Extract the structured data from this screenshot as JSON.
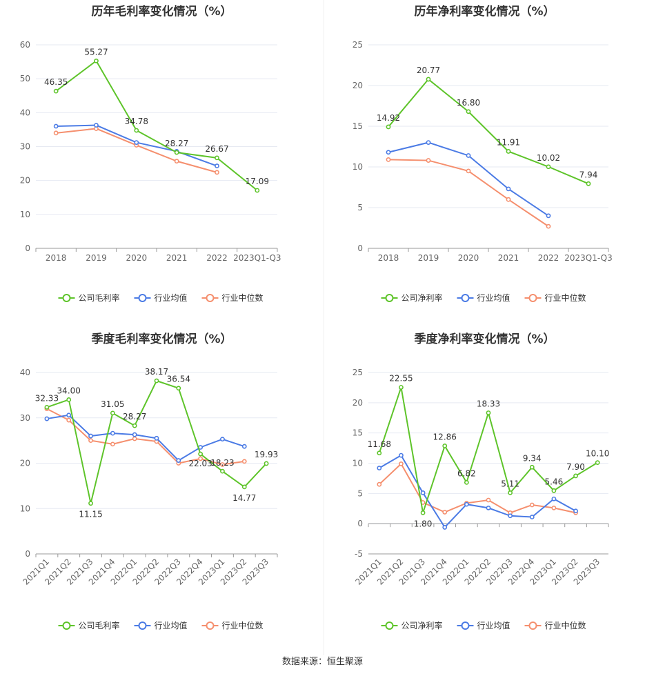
{
  "colors": {
    "company": "#5ec42a",
    "industry_avg": "#4b7be5",
    "industry_median": "#f58f6e"
  },
  "legend": {
    "gross": [
      "公司毛利率",
      "行业均值",
      "行业中位数"
    ],
    "net": [
      "公司净利率",
      "行业均值",
      "行业中位数"
    ]
  },
  "footer": {
    "source": "数据来源：恒生聚源"
  },
  "chart_data": [
    {
      "type": "line",
      "title": "历年毛利率变化情况（%）",
      "categories": [
        "2018",
        "2019",
        "2020",
        "2021",
        "2022",
        "2023Q1-Q3"
      ],
      "ylim": [
        0,
        60
      ],
      "yticks": [
        0,
        10,
        20,
        30,
        40,
        50,
        60
      ],
      "legend_position": "bottom",
      "series": [
        {
          "name": "公司毛利率",
          "values": [
            46.35,
            55.27,
            34.78,
            28.27,
            26.67,
            17.09
          ],
          "labels": true
        },
        {
          "name": "行业均值",
          "values": [
            36.0,
            36.3,
            31.2,
            28.6,
            24.3,
            null
          ],
          "labels": false
        },
        {
          "name": "行业中位数",
          "values": [
            34.0,
            35.3,
            30.4,
            25.7,
            22.4,
            null
          ],
          "labels": false
        }
      ]
    },
    {
      "type": "line",
      "title": "历年净利率变化情况（%）",
      "categories": [
        "2018",
        "2019",
        "2020",
        "2021",
        "2022",
        "2023Q1-Q3"
      ],
      "ylim": [
        0,
        25
      ],
      "yticks": [
        0,
        5,
        10,
        15,
        20,
        25
      ],
      "legend_position": "bottom",
      "series": [
        {
          "name": "公司净利率",
          "values": [
            14.92,
            20.77,
            16.8,
            11.91,
            10.02,
            7.94
          ],
          "labels": true
        },
        {
          "name": "行业均值",
          "values": [
            11.8,
            13.0,
            11.4,
            7.3,
            4.0,
            null
          ],
          "labels": false
        },
        {
          "name": "行业中位数",
          "values": [
            10.9,
            10.8,
            9.5,
            6.0,
            2.7,
            null
          ],
          "labels": false
        }
      ]
    },
    {
      "type": "line",
      "title": "季度毛利率变化情况（%）",
      "categories": [
        "2021Q1",
        "2021Q2",
        "2021Q3",
        "2021Q4",
        "2022Q1",
        "2022Q2",
        "2022Q3",
        "2022Q4",
        "2023Q1",
        "2023Q2",
        "2023Q3"
      ],
      "ylim": [
        0,
        40
      ],
      "yticks": [
        0,
        10,
        20,
        30,
        40
      ],
      "legend_position": "bottom",
      "series": [
        {
          "name": "公司毛利率",
          "values": [
            32.33,
            34.0,
            11.15,
            31.05,
            28.27,
            38.17,
            36.54,
            22.03,
            18.23,
            14.77,
            19.93
          ],
          "labels": true
        },
        {
          "name": "行业均值",
          "values": [
            29.8,
            30.6,
            26.0,
            26.6,
            26.3,
            25.5,
            20.6,
            23.5,
            25.3,
            23.7,
            null
          ],
          "labels": false
        },
        {
          "name": "行业中位数",
          "values": [
            32.0,
            29.5,
            25.0,
            24.2,
            25.4,
            24.8,
            20.0,
            21.0,
            19.7,
            20.4,
            null
          ],
          "labels": false
        }
      ]
    },
    {
      "type": "line",
      "title": "季度净利率变化情况（%）",
      "categories": [
        "2021Q1",
        "2021Q2",
        "2021Q3",
        "2021Q4",
        "2022Q1",
        "2022Q2",
        "2022Q3",
        "2022Q4",
        "2023Q1",
        "2023Q2",
        "2023Q3"
      ],
      "ylim": [
        -5,
        25
      ],
      "yticks": [
        -5,
        0,
        5,
        10,
        15,
        20,
        25
      ],
      "legend_position": "bottom",
      "series": [
        {
          "name": "公司净利率",
          "values": [
            11.68,
            22.55,
            1.8,
            12.86,
            6.82,
            18.33,
            5.11,
            9.34,
            5.46,
            7.9,
            10.1
          ],
          "labels": true
        },
        {
          "name": "行业均值",
          "values": [
            9.2,
            11.3,
            5.1,
            -0.6,
            3.2,
            2.6,
            1.3,
            1.1,
            4.1,
            2.1,
            null
          ],
          "labels": false
        },
        {
          "name": "行业中位数",
          "values": [
            6.5,
            9.9,
            3.5,
            1.9,
            3.4,
            3.9,
            1.8,
            3.1,
            2.6,
            1.8,
            null
          ],
          "labels": false
        }
      ]
    }
  ]
}
